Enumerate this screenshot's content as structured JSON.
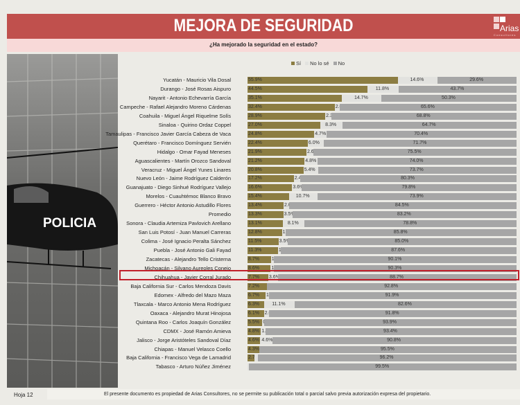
{
  "header": {
    "title": "MEJORA DE SEGURIDAD",
    "logo_text": "Arias",
    "logo_sub": "Consultores"
  },
  "photo": {
    "text": "POLICIA"
  },
  "footer": {
    "page": "Hoja 12",
    "note": "El presente documento es propiedad de Arias Consultores, no se permite su publicación total o parcial salvo previa autorización expresa del propietario."
  },
  "colors": {
    "si": "#8c7d42",
    "no_lo_se": "#e2e2df",
    "no": "#a6a6a6",
    "header": "#c0504d"
  },
  "chart_data": {
    "type": "bar",
    "stacked": true,
    "orientation": "horizontal",
    "title": "¿Ha mejorado la seguridad en el estado?",
    "legend": [
      "Sí",
      "No lo sé",
      "No"
    ],
    "legend_position": "top",
    "xlim": [
      0,
      100
    ],
    "unit": "%",
    "highlight": "Michoacán - Silvano Aureoles Conejo",
    "categories": [
      "Yucatán  - Mauricio Vila Dosal",
      "Durango - José Rosas Aispuro",
      "Nayarit - Antonio Echevarría García",
      "Campeche - Rafael Alejandro Moreno Cárdenas",
      "Coahuila - Miguel Ángel Riquelme Solís",
      "Sinaloa - Quirino Ordaz Coppel",
      "Tamaulipas - Francisco Javier García Cabeza de Vaca",
      "Querétaro - Francisco Domínguez Servién",
      "Hidalgo - Omar Fayad Meneses",
      "Aguascalientes - Martín Orozco Sandoval",
      "Veracruz - Miguel Ángel Yunes Linares",
      "Nuevo León  - Jaime Rodríguez Calderón",
      "Guanajuato - Diego Sinhué Rodríguez Vallejo",
      "Morelos - Cuauhtémoc Blanco Bravo",
      "Guerrero - Héctor Antonio Astudillo Flores",
      "Promedio",
      "Sonora - Claudia Artemiza Pavlovich Arellano",
      "San Luis Potosí - Juan Manuel Carreras",
      "Colima - José Ignacio Peralta Sánchez",
      "Puebla - José Antonio Gali Fayad",
      "Zacatecas - Alejandro Tello Cristerna",
      "Michoacán - Silvano Aureoles Conejo",
      "Chihuahua - Javier Corral Jurado",
      "Baja California Sur - Carlos Mendoza Davis",
      "Edomex - Alfredo del Mazo Maza",
      "Tlaxcala - Marco Antonio Mena Rodríguez",
      "Oaxaca  - Alejandro Murat Hinojosa",
      "Quintana Roo - Carlos Joaquín González",
      "CDMX - José Ramón Amieva",
      "Jalisco - Jorge Aristóteles Sandoval Díaz",
      "Chiapas - Manuel Velasco Coello",
      "Baja California - Francisco Vega de Lamadrid",
      "Tabasco - Arturo Núñez Jiménez"
    ],
    "series": [
      {
        "name": "Sí",
        "values": [
          55.9,
          44.5,
          35.1,
          32.4,
          28.9,
          27.0,
          24.8,
          22.4,
          21.9,
          21.2,
          20.8,
          17.2,
          16.6,
          15.4,
          13.4,
          13.3,
          13.1,
          12.8,
          11.5,
          11.3,
          8.7,
          8.6,
          7.7,
          7.2,
          6.7,
          6.3,
          6.1,
          5.5,
          4.8,
          4.6,
          4.3,
          2.7,
          0.0
        ]
      },
      {
        "name": "No lo sé",
        "values": [
          14.6,
          11.8,
          14.7,
          2.0,
          2.3,
          8.3,
          4.7,
          6.0,
          2.6,
          4.8,
          5.4,
          2.4,
          3.6,
          10.7,
          2.0,
          3.5,
          8.1,
          1.4,
          3.5,
          1.1,
          1.2,
          1.2,
          3.6,
          0.0,
          1.3,
          11.1,
          2.0,
          0.6,
          1.8,
          4.6,
          0.2,
          1.1,
          0.5
        ]
      },
      {
        "name": "No",
        "values": [
          29.6,
          43.7,
          50.3,
          65.6,
          68.8,
          64.7,
          70.4,
          71.7,
          75.5,
          74.0,
          73.7,
          80.3,
          79.8,
          73.9,
          84.5,
          83.2,
          78.8,
          85.8,
          85.0,
          87.6,
          90.1,
          90.3,
          88.7,
          92.8,
          91.9,
          82.6,
          91.8,
          93.9,
          93.4,
          90.8,
          95.5,
          96.2,
          99.5
        ]
      }
    ]
  }
}
